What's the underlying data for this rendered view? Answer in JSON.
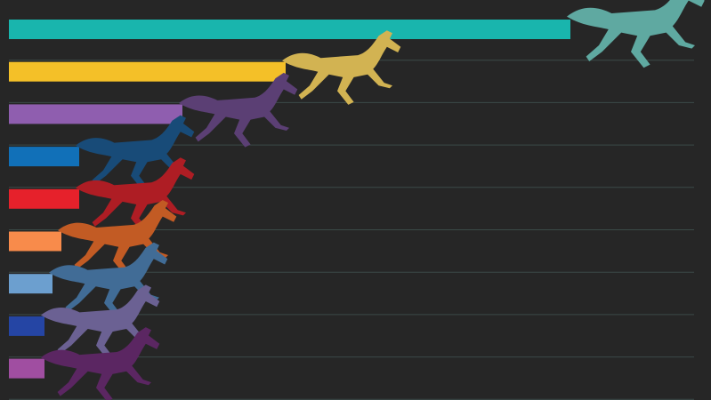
{
  "chart_data": {
    "type": "bar",
    "orientation": "horizontal",
    "categories": [
      null,
      null,
      null,
      null,
      null,
      null,
      null,
      null,
      null
    ],
    "values": [
      63.1,
      31.1,
      19.5,
      7.9,
      7.9,
      5.9,
      4.9,
      4.0,
      4.0
    ],
    "colors": [
      "#19b5ad",
      "#f4c028",
      "#8f5eaf",
      "#1170b8",
      "#e6212b",
      "#f88b4b",
      "#6c9fcf",
      "#2545a4",
      "#a04ea1"
    ],
    "horse_colors": [
      "#5fa9a1",
      "#d2b352",
      "#5b3f74",
      "#184b78",
      "#ae1d24",
      "#c25b24",
      "#416c96",
      "#6b6193",
      "#5b2662"
    ],
    "xlim": [
      0,
      79
    ],
    "grid": true
  }
}
